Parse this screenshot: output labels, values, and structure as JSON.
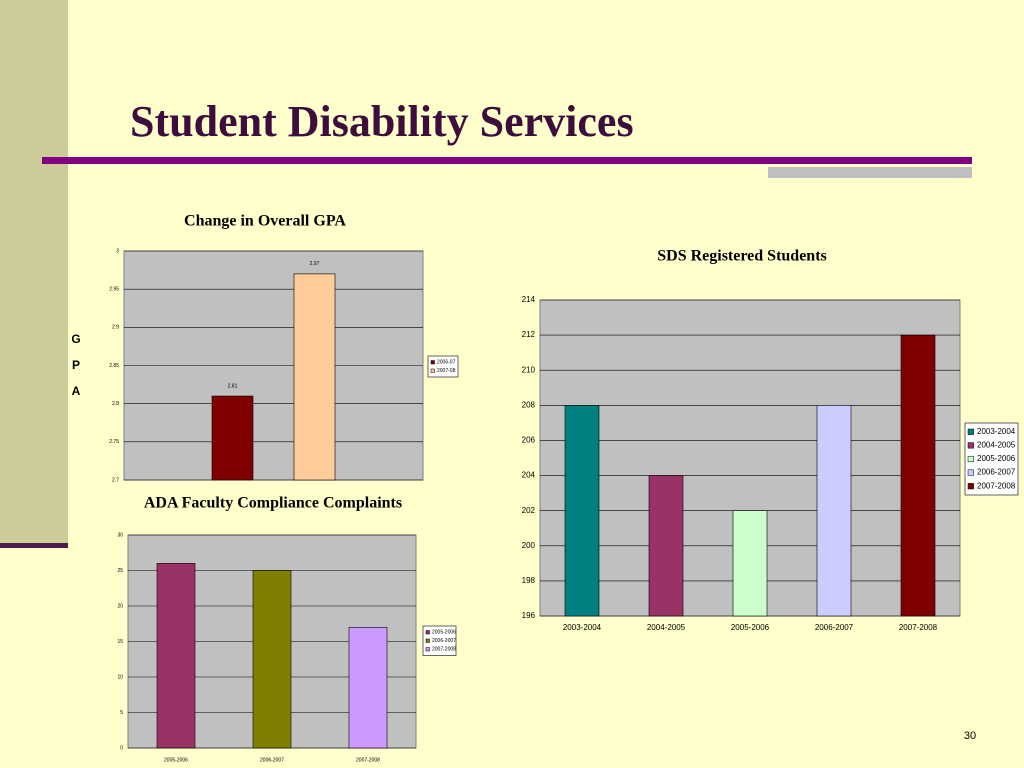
{
  "slide": {
    "title": "Student Disability Services",
    "page_number": 30
  },
  "chart_data": [
    {
      "type": "bar",
      "title": "Change in Overall GPA",
      "y_label": "GPA",
      "categories": [
        null
      ],
      "series": [
        {
          "name": "2006-07",
          "color": "#800000",
          "values": [
            2.81
          ]
        },
        {
          "name": "2007-08",
          "color": "#ffcc99",
          "values": [
            2.97
          ]
        }
      ],
      "ylim": [
        2.7,
        3
      ],
      "yticks": [
        2.7,
        2.75,
        2.8,
        2.85,
        2.9,
        2.95,
        3
      ],
      "grid": true,
      "data_labels": true,
      "legend": "right"
    },
    {
      "type": "bar",
      "title": "SDS Registered Students",
      "categories": [
        "2003-2004",
        "2004-2005",
        "2005-2006",
        "2006-2007",
        "2007-2008"
      ],
      "values": [
        208,
        204,
        202,
        208,
        212
      ],
      "colors": [
        "#008080",
        "#993366",
        "#ccffcc",
        "#ccccff",
        "#800000"
      ],
      "ylim": [
        196,
        214
      ],
      "yticks": [
        196,
        198,
        200,
        202,
        204,
        206,
        208,
        210,
        212,
        214
      ],
      "grid": true,
      "legend": "right"
    },
    {
      "type": "bar",
      "title": "ADA Faculty Compliance Complaints",
      "categories": [
        "2005-2006",
        "2006-2007",
        "2007-2008"
      ],
      "values": [
        26,
        25,
        17
      ],
      "colors": [
        "#993366",
        "#808000",
        "#cc99ff"
      ],
      "ylim": [
        0,
        30
      ],
      "yticks": [
        0,
        5,
        10,
        15,
        20,
        25,
        30
      ],
      "grid": true,
      "legend": "right"
    }
  ]
}
